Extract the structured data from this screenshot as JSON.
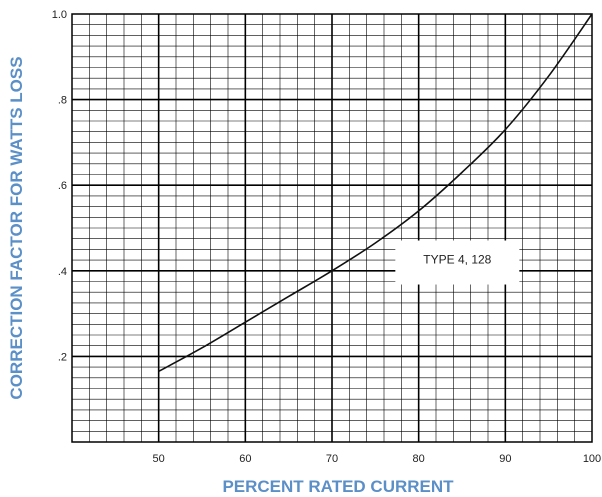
{
  "chart_data": {
    "type": "line",
    "title": "",
    "xlabel": "PERCENT RATED CURRENT",
    "ylabel": "CORRECTION FACTOR FOR WATTS LOSS",
    "xlim": [
      40,
      100
    ],
    "ylim": [
      0,
      1.0
    ],
    "x_ticks": [
      50,
      60,
      70,
      80,
      90,
      100
    ],
    "x_tick_labels": [
      "50",
      "60",
      "70",
      "80",
      "90",
      "100"
    ],
    "y_ticks": [
      0.2,
      0.4,
      0.6,
      0.8,
      1.0
    ],
    "y_tick_labels": [
      ".2",
      ".4",
      ".6",
      ".8",
      "1.0"
    ],
    "grid": true,
    "series": [
      {
        "name": "TYPE 4, 128",
        "x": [
          50,
          55,
          60,
          65,
          70,
          75,
          80,
          85,
          90,
          95,
          100
        ],
        "y": [
          0.165,
          0.22,
          0.28,
          0.34,
          0.4,
          0.465,
          0.54,
          0.63,
          0.73,
          0.855,
          1.0
        ]
      }
    ],
    "annotations": [
      {
        "text": "TYPE 4, 128",
        "x": 84,
        "y": 0.41
      }
    ],
    "colors": {
      "line": "#111111",
      "grid": "#000000",
      "axis_title": "#5b8fc7"
    }
  }
}
